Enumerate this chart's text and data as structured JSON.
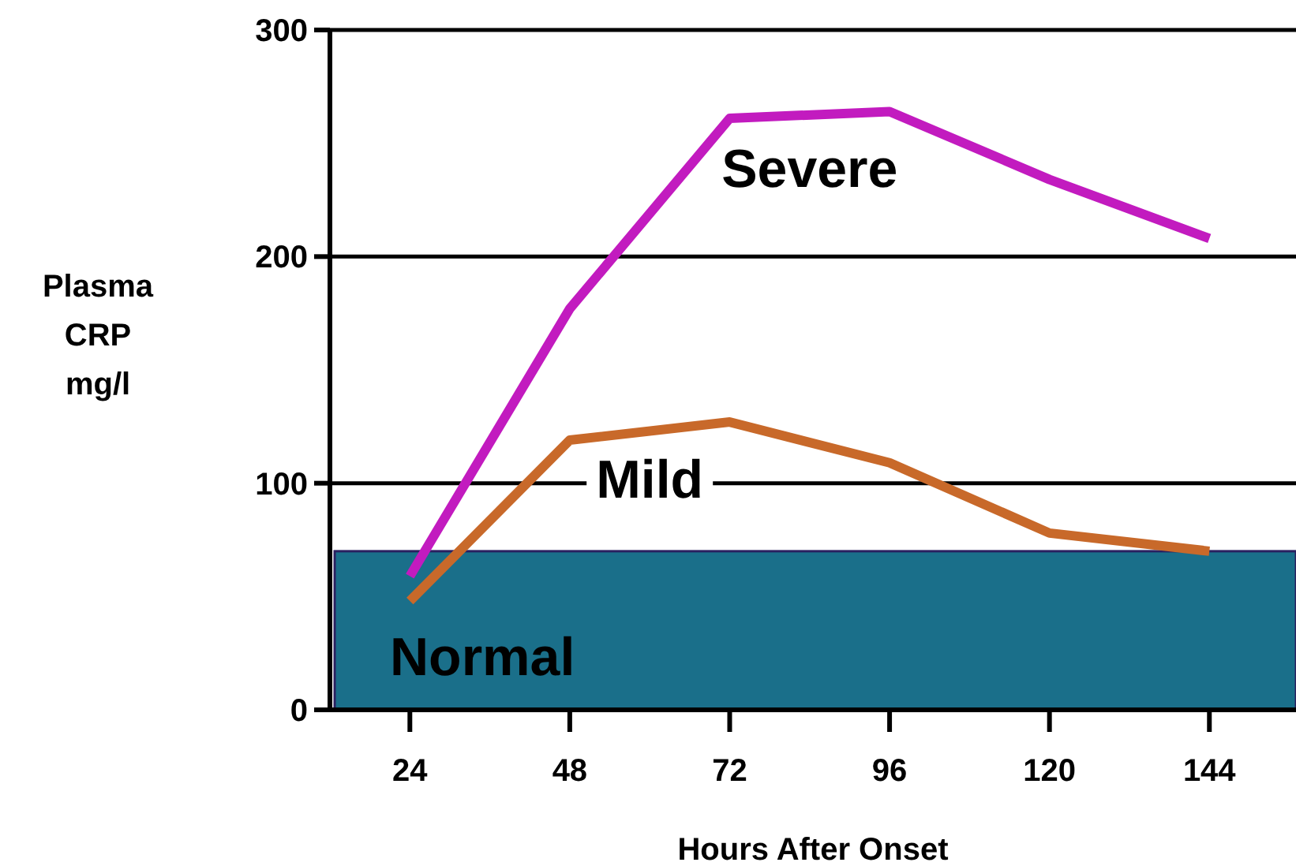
{
  "chart_data": {
    "type": "line",
    "xlabel": "Hours After Onset",
    "ylabel": "Plasma CRP mg/l",
    "x": [
      24,
      48,
      72,
      96,
      120,
      144
    ],
    "series": [
      {
        "name": "Severe",
        "color": "#c21bbf",
        "values": [
          59,
          177,
          261,
          264,
          234,
          208
        ]
      },
      {
        "name": "Mild",
        "color": "#c8692a",
        "values": [
          48,
          119,
          127,
          109,
          78,
          70
        ]
      }
    ],
    "xlim": [
      12,
      157
    ],
    "xticks": [
      24,
      48,
      72,
      96,
      120,
      144
    ],
    "ylim": [
      0,
      300
    ],
    "yticks": [
      0,
      100,
      200,
      300
    ],
    "grid": "y",
    "marker": "none",
    "line_style": "solid",
    "bands": [
      {
        "axis": "y",
        "from": 0,
        "to": 70,
        "label": "Normal",
        "color": "#1a6f8a"
      }
    ]
  }
}
